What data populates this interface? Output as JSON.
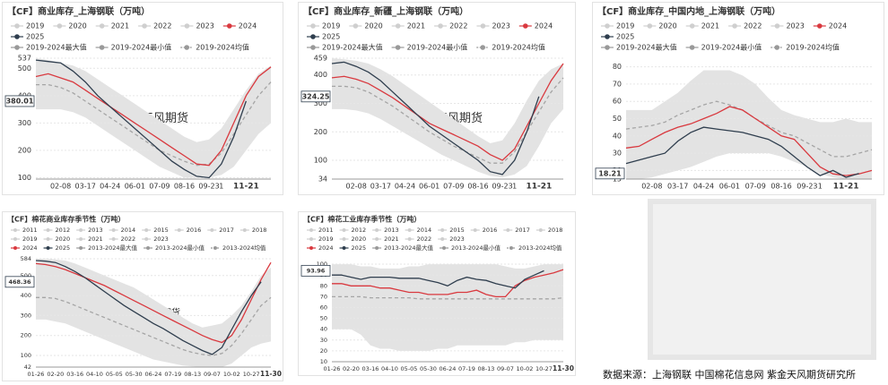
{
  "chart_data": [
    {
      "type": "line",
      "title": "【CF】商业库存_上海钢联（万吨）",
      "watermark": "紫金天风期货",
      "inactive_legend": [
        "2019",
        "2020",
        "2021",
        "2022",
        "2023"
      ],
      "categories": [
        null,
        null,
        "02-08",
        null,
        "03-17",
        null,
        "04-24",
        null,
        "06-01",
        null,
        "07-09",
        null,
        "08-16",
        null,
        "09-23",
        "1",
        null,
        "11-21",
        null,
        null
      ],
      "ylim": [
        95,
        537
      ],
      "yticks": [
        100,
        200,
        300,
        400,
        500,
        537
      ],
      "grid": true,
      "series": [
        {
          "name": "2019-2024最大值",
          "color": "#999999",
          "style": "area_top",
          "values": [
            537,
            530,
            520,
            510,
            490,
            460,
            430,
            400,
            370,
            340,
            310,
            280,
            250,
            230,
            240,
            280,
            350,
            420,
            480,
            510
          ]
        },
        {
          "name": "2019-2024最小值",
          "color": "#999999",
          "style": "area_bottom",
          "values": [
            350,
            350,
            350,
            340,
            320,
            290,
            260,
            230,
            200,
            170,
            140,
            120,
            100,
            100,
            100,
            110,
            140,
            200,
            260,
            300
          ]
        },
        {
          "name": "2019-2024均值",
          "color": "#999999",
          "style": "dashed",
          "values": [
            440,
            440,
            430,
            410,
            380,
            350,
            320,
            290,
            260,
            230,
            200,
            180,
            160,
            145,
            150,
            190,
            260,
            330,
            400,
            450
          ]
        },
        {
          "name": "2024",
          "color": "#d9393f",
          "style": "line",
          "values": [
            470,
            480,
            465,
            450,
            420,
            390,
            360,
            330,
            300,
            270,
            240,
            210,
            180,
            150,
            145,
            200,
            300,
            400,
            470,
            505
          ]
        },
        {
          "name": "2025",
          "color": "#2f3e4e",
          "style": "line",
          "values": [
            530,
            525,
            520,
            490,
            450,
            400,
            360,
            320,
            280,
            240,
            200,
            160,
            130,
            105,
            100,
            150,
            250,
            380.01,
            null,
            null
          ]
        }
      ]
    },
    {
      "type": "line",
      "title": "【CF】商业库存_新疆_上海钢联（万吨）",
      "watermark": "紫金天风期货",
      "inactive_legend": [
        "2019",
        "2020",
        "2021",
        "2022",
        "2023"
      ],
      "categories": [
        null,
        null,
        "02-08",
        null,
        "03-17",
        null,
        "04-24",
        null,
        "06-01",
        null,
        "07-09",
        null,
        "08-16",
        null,
        "09-23",
        "1",
        null,
        "11-21",
        null,
        null
      ],
      "ylim": [
        34,
        459
      ],
      "yticks": [
        34,
        100,
        200,
        300,
        400,
        459
      ],
      "grid": true,
      "series": [
        {
          "name": "2019-2024最大值",
          "color": "#999999",
          "style": "area_top",
          "values": [
            459,
            455,
            450,
            440,
            420,
            395,
            365,
            335,
            305,
            275,
            245,
            215,
            185,
            160,
            170,
            230,
            310,
            380,
            420,
            440
          ]
        },
        {
          "name": "2019-2024最小值",
          "color": "#999999",
          "style": "area_bottom",
          "values": [
            280,
            280,
            275,
            265,
            245,
            220,
            195,
            170,
            145,
            120,
            100,
            80,
            60,
            45,
            40,
            50,
            80,
            150,
            230,
            280
          ]
        },
        {
          "name": "2019-2024均值",
          "color": "#999999",
          "style": "dashed",
          "values": [
            360,
            360,
            355,
            340,
            315,
            290,
            260,
            230,
            200,
            175,
            150,
            130,
            110,
            90,
            90,
            130,
            200,
            270,
            340,
            390
          ]
        },
        {
          "name": "2024",
          "color": "#d9393f",
          "style": "line",
          "values": [
            390,
            395,
            385,
            370,
            345,
            320,
            290,
            260,
            230,
            210,
            190,
            170,
            150,
            120,
            100,
            140,
            220,
            300,
            380,
            440
          ]
        },
        {
          "name": "2025",
          "color": "#2f3e4e",
          "style": "line",
          "values": [
            440,
            445,
            430,
            410,
            380,
            340,
            300,
            260,
            220,
            190,
            160,
            130,
            100,
            60,
            50,
            100,
            200,
            324.25,
            null,
            null
          ]
        }
      ]
    },
    {
      "type": "line",
      "title": "【CF】商业库存_中国内地_上海钢联（万吨）",
      "watermark": "紫金天风期货",
      "inactive_legend": [
        "2019",
        "2020",
        "2021",
        "2022",
        "2023"
      ],
      "categories": [
        null,
        null,
        "02-08",
        null,
        "03-17",
        null,
        "04-24",
        null,
        "06-01",
        null,
        "07-09",
        null,
        "08-16",
        null,
        "09-23",
        "1",
        null,
        "11-21",
        null,
        null
      ],
      "ylim": [
        15,
        85
      ],
      "yticks": [
        15,
        20,
        30,
        40,
        50,
        60,
        70,
        80
      ],
      "grid": true,
      "series": [
        {
          "name": "2019-2024最大值",
          "color": "#999999",
          "style": "area_top",
          "values": [
            55,
            55,
            55,
            60,
            65,
            72,
            78,
            78,
            78,
            75,
            70,
            62,
            55,
            52,
            50,
            48,
            48,
            50,
            48,
            48
          ]
        },
        {
          "name": "2019-2024最小值",
          "color": "#999999",
          "style": "area_bottom",
          "values": [
            15,
            15,
            16,
            18,
            20,
            22,
            25,
            28,
            30,
            30,
            30,
            30,
            28,
            25,
            22,
            18,
            16,
            15,
            15,
            15
          ]
        },
        {
          "name": "2019-2024均值",
          "color": "#999999",
          "style": "dashed",
          "values": [
            44,
            45,
            46,
            48,
            52,
            55,
            58,
            60,
            58,
            55,
            50,
            46,
            42,
            40,
            36,
            32,
            28,
            28,
            30,
            32
          ]
        },
        {
          "name": "2024",
          "color": "#d9393f",
          "style": "line",
          "values": [
            33,
            34,
            38,
            42,
            45,
            47,
            50,
            53,
            57,
            55,
            50,
            45,
            40,
            38,
            30,
            22,
            18,
            17,
            18,
            20
          ]
        },
        {
          "name": "2025",
          "color": "#2f3e4e",
          "style": "line",
          "values": [
            24,
            26,
            28,
            30,
            37,
            42,
            45,
            44,
            43,
            42,
            40,
            38,
            34,
            28,
            22,
            17,
            20,
            16,
            18.21,
            null
          ]
        }
      ]
    },
    {
      "type": "line",
      "title": "【CF】棉花商业库存季节性（万吨）",
      "watermark": "紫金天风期货",
      "inactive_legend": [
        "2011",
        "2012",
        "2013",
        "2014",
        "2015",
        "2016",
        "2017",
        "2018",
        "2019",
        "2020",
        "2021",
        "2022",
        "2023"
      ],
      "categories": [
        "01-26",
        null,
        "02-20",
        null,
        "03-16",
        null,
        "04-10",
        null,
        "05-05",
        null,
        "05-30",
        null,
        "06-24",
        null,
        "07-19",
        null,
        "08-13",
        null,
        "09-07",
        null,
        "10-02",
        null,
        "10-27",
        null,
        "11-30"
      ],
      "ylim": [
        42,
        584
      ],
      "yticks": [
        42,
        100,
        200,
        300,
        400,
        500,
        584
      ],
      "grid": true,
      "series": [
        {
          "name": "2024",
          "color": "#d9393f",
          "style": "line",
          "values": [
            560,
            555,
            545,
            530,
            510,
            490,
            470,
            450,
            425,
            400,
            375,
            350,
            325,
            300,
            275,
            250,
            225,
            200,
            180,
            165,
            200,
            280,
            380,
            480,
            565
          ]
        },
        {
          "name": "2025",
          "color": "#2f3e4e",
          "style": "line",
          "values": [
            575,
            572,
            565,
            545,
            520,
            490,
            455,
            420,
            385,
            350,
            320,
            290,
            260,
            235,
            205,
            175,
            150,
            125,
            105,
            140,
            230,
            320,
            400,
            468.36,
            null
          ]
        },
        {
          "name": "2013-2024最大值",
          "color": "#999999",
          "style": "area_top",
          "values": [
            584,
            584,
            580,
            575,
            560,
            540,
            520,
            500,
            480,
            460,
            440,
            410,
            380,
            350,
            320,
            290,
            260,
            240,
            250,
            260,
            300,
            350,
            420,
            500,
            540
          ]
        },
        {
          "name": "2013-2024最小值",
          "color": "#999999",
          "style": "area_bottom",
          "values": [
            280,
            280,
            270,
            260,
            240,
            220,
            200,
            180,
            160,
            140,
            120,
            100,
            80,
            70,
            60,
            50,
            45,
            42,
            42,
            42,
            60,
            100,
            140,
            160,
            170
          ]
        },
        {
          "name": "2013-2024均值",
          "color": "#999999",
          "style": "dashed",
          "values": [
            390,
            390,
            385,
            370,
            350,
            330,
            310,
            290,
            270,
            250,
            230,
            210,
            190,
            170,
            150,
            130,
            115,
            105,
            100,
            110,
            150,
            210,
            280,
            350,
            390
          ]
        }
      ]
    },
    {
      "type": "line",
      "title": "【CF】棉花工业库存季节性（万吨）",
      "watermark": "紫金天风期货",
      "inactive_legend": [
        "2011",
        "2012",
        "2013",
        "2014",
        "2015",
        "2016",
        "2017",
        "2018",
        "2019",
        "2020",
        "2021",
        "2022",
        "2023"
      ],
      "categories": [
        "01-26",
        null,
        "02-20",
        null,
        "03-16",
        null,
        "04-10",
        null,
        "05-05",
        null,
        "05-30",
        null,
        "06-24",
        null,
        "07-19",
        null,
        "08-13",
        null,
        "09-07",
        null,
        "10-02",
        null,
        "10-27",
        null,
        "11-30"
      ],
      "ylim": [
        10,
        105
      ],
      "yticks": [
        10,
        20,
        30,
        40,
        50,
        60,
        70,
        80,
        90,
        100
      ],
      "grid": true,
      "series": [
        {
          "name": "2024",
          "color": "#d9393f",
          "style": "line",
          "values": [
            82,
            82,
            80,
            80,
            80,
            78,
            78,
            76,
            74,
            74,
            72,
            72,
            72,
            74,
            74,
            76,
            72,
            70,
            70,
            80,
            85,
            88,
            90,
            92,
            95
          ]
        },
        {
          "name": "2025",
          "color": "#2f3e4e",
          "style": "line",
          "values": [
            90,
            90,
            88,
            86,
            88,
            88,
            88,
            87,
            87,
            87,
            85,
            83,
            80,
            85,
            88,
            86,
            85,
            82,
            80,
            78,
            86,
            90,
            93.96,
            null,
            null
          ]
        },
        {
          "name": "2013-2024最大值",
          "color": "#999999",
          "style": "area_top",
          "values": [
            100,
            100,
            100,
            98,
            98,
            96,
            96,
            96,
            98,
            98,
            100,
            100,
            100,
            100,
            100,
            100,
            100,
            100,
            98,
            96,
            96,
            98,
            100,
            100,
            100
          ]
        },
        {
          "name": "2013-2024最小值",
          "color": "#999999",
          "style": "area_bottom",
          "values": [
            40,
            40,
            40,
            35,
            25,
            22,
            22,
            20,
            20,
            20,
            20,
            22,
            22,
            25,
            25,
            25,
            25,
            25,
            25,
            28,
            28,
            30,
            30,
            30,
            30
          ]
        },
        {
          "name": "2013-2024均值",
          "color": "#999999",
          "style": "dashed",
          "values": [
            70,
            70,
            70,
            70,
            69,
            69,
            69,
            69,
            69,
            68,
            68,
            68,
            68,
            68,
            68,
            68,
            68,
            68,
            68,
            68,
            68,
            68,
            68,
            68,
            69
          ]
        }
      ]
    }
  ],
  "source": "数据来源：上海钢联 中国棉花信息网 紫金天风期货研究所"
}
